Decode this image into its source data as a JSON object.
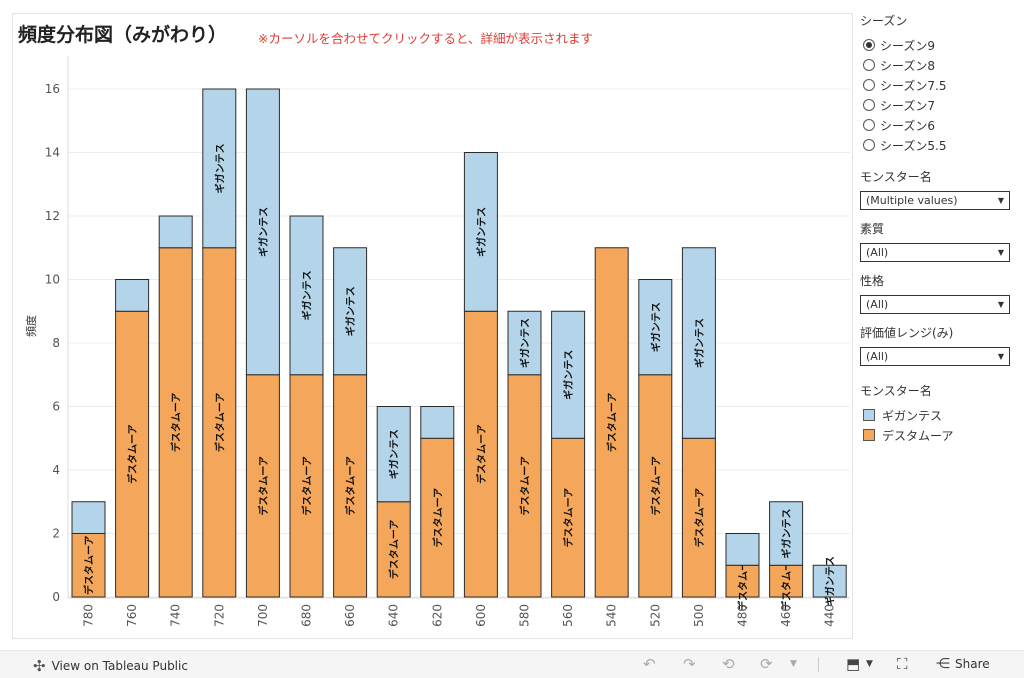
{
  "title": "頻度分布図（みがわり）",
  "subtitle": "※カーソルを合わせてクリックすると、詳細が表示されます",
  "season_filter": {
    "title": "シーズン",
    "options": [
      "シーズン9",
      "シーズン8",
      "シーズン7.5",
      "シーズン7",
      "シーズン6",
      "シーズン5.5"
    ],
    "selected": "シーズン9"
  },
  "filters": [
    {
      "label": "モンスター名",
      "value": "(Multiple values)"
    },
    {
      "label": "素質",
      "value": "(All)"
    },
    {
      "label": "性格",
      "value": "(All)"
    },
    {
      "label": "評価値レンジ(み)",
      "value": "(All)"
    }
  ],
  "legend": {
    "title": "モンスター名",
    "items": [
      {
        "label": "ギガンテス",
        "color": "#b4d4ea"
      },
      {
        "label": "デスタムーア",
        "color": "#f4a65a"
      }
    ]
  },
  "chart_data": {
    "type": "bar",
    "stacked": true,
    "categories": [
      "780",
      "760",
      "740",
      "720",
      "700",
      "680",
      "660",
      "640",
      "620",
      "600",
      "580",
      "560",
      "540",
      "520",
      "500",
      "480",
      "460",
      "440"
    ],
    "series": [
      {
        "name": "デスタムーア",
        "color": "#f4a65a",
        "values": [
          2,
          9,
          11,
          11,
          7,
          7,
          7,
          3,
          5,
          9,
          7,
          5,
          11,
          7,
          5,
          1,
          1,
          0
        ]
      },
      {
        "name": "ギガンテス",
        "color": "#b4d4ea",
        "values": [
          1,
          1,
          1,
          5,
          9,
          5,
          4,
          3,
          1,
          5,
          2,
          4,
          0,
          3,
          6,
          1,
          2,
          1
        ]
      }
    ],
    "ylabel": "頻度",
    "xlabel": "",
    "ylim": [
      0,
      16
    ],
    "yticks": [
      0,
      2,
      4,
      6,
      8,
      10,
      12,
      14,
      16
    ],
    "grid": true,
    "legend_position": "right"
  },
  "footer": {
    "tableau_link": "View on Tableau Public",
    "share_label": "Share"
  }
}
